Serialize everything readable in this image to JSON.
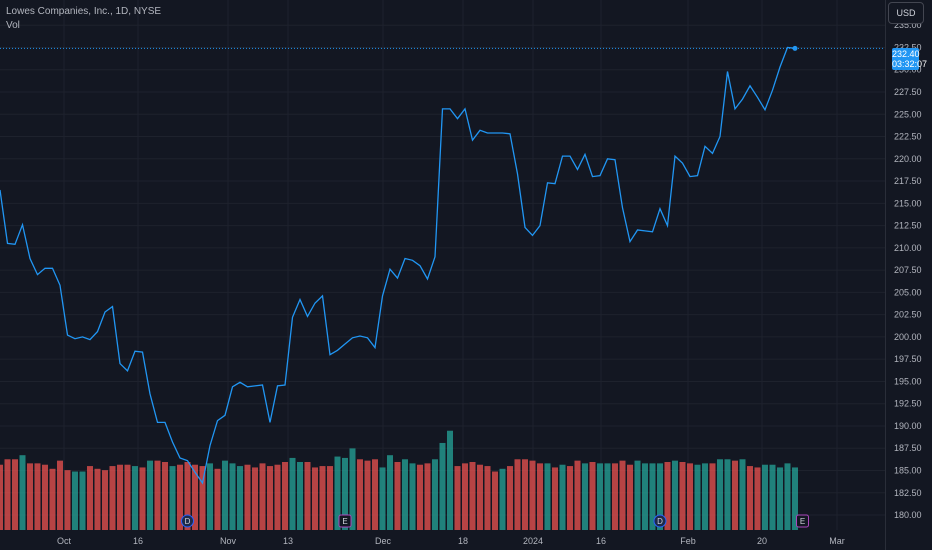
{
  "header": {
    "title": "Lowes Companies, Inc., 1D, NYSE",
    "volume_label": "Vol"
  },
  "currency_button": "USD",
  "last_price": {
    "price": "232.40",
    "countdown": "03:32:07"
  },
  "colors": {
    "line": "#2196f3",
    "up": "#26a69a",
    "down": "#ef5350",
    "bg": "#131722",
    "grid": "#1e222d"
  },
  "chart_data": {
    "type": "line",
    "series": [
      {
        "values": [
          216.5,
          210.5,
          210.4,
          212.6,
          208.8,
          207.0,
          207.7,
          207.7,
          205.8,
          200.2,
          199.8,
          200.0,
          199.7,
          200.6,
          202.8,
          203.4,
          197.0,
          196.2,
          198.4,
          198.3,
          193.6,
          190.4,
          190.4,
          188.2,
          186.4,
          186.1,
          184.8,
          183.6,
          187.8,
          190.6,
          191.2,
          194.4,
          194.9,
          194.4,
          194.5,
          194.6,
          190.4,
          194.5,
          194.6,
          202.2,
          204.2,
          202.3,
          203.8,
          204.6,
          198.0,
          198.5,
          199.2,
          199.9,
          200.1,
          199.9,
          198.8,
          204.6,
          207.6,
          206.6,
          208.8,
          208.6,
          208.0,
          206.5,
          209.0,
          225.6,
          225.6,
          224.5,
          225.6,
          222.1,
          223.2,
          222.9,
          222.9,
          222.9,
          222.8,
          218.3,
          212.3,
          211.4,
          212.5,
          217.3,
          217.2,
          220.3,
          220.3,
          218.8,
          220.5,
          218.0,
          218.1,
          220.0,
          219.9,
          214.5,
          210.7,
          212.0,
          211.9,
          211.8,
          214.4,
          212.5,
          220.3,
          219.5,
          218.0,
          218.1,
          221.4,
          220.6,
          222.5,
          229.8,
          225.6,
          226.7,
          228.2,
          226.9,
          225.5,
          227.7,
          230.3,
          232.5,
          232.4
        ],
        "volume": [
          0.48,
          0.52,
          0.52,
          0.55,
          0.49,
          0.49,
          0.48,
          0.45,
          0.51,
          0.44,
          0.43,
          0.43,
          0.47,
          0.45,
          0.44,
          0.47,
          0.48,
          0.48,
          0.47,
          0.46,
          0.51,
          0.51,
          0.5,
          0.47,
          0.48,
          0.5,
          0.48,
          0.47,
          0.49,
          0.45,
          0.51,
          0.49,
          0.47,
          0.48,
          0.46,
          0.49,
          0.47,
          0.48,
          0.5,
          0.53,
          0.5,
          0.5,
          0.46,
          0.47,
          0.47,
          0.54,
          0.53,
          0.6,
          0.52,
          0.51,
          0.52,
          0.46,
          0.55,
          0.5,
          0.52,
          0.49,
          0.48,
          0.49,
          0.52,
          0.64,
          0.73,
          0.47,
          0.49,
          0.5,
          0.48,
          0.47,
          0.43,
          0.45,
          0.47,
          0.52,
          0.52,
          0.51,
          0.49,
          0.49,
          0.46,
          0.48,
          0.47,
          0.51,
          0.49,
          0.5,
          0.49,
          0.49,
          0.49,
          0.51,
          0.48,
          0.51,
          0.49,
          0.49,
          0.49,
          0.5,
          0.51,
          0.5,
          0.49,
          0.48,
          0.49,
          0.49,
          0.52,
          0.52,
          0.51,
          0.52,
          0.47,
          0.46,
          0.48,
          0.48,
          0.46,
          0.49,
          0.46
        ],
        "volume_up": [
          false,
          false,
          false,
          true,
          false,
          false,
          false,
          false,
          false,
          false,
          true,
          true,
          false,
          false,
          false,
          false,
          false,
          false,
          true,
          false,
          true,
          false,
          false,
          true,
          false,
          false,
          false,
          false,
          true,
          false,
          true,
          true,
          true,
          false,
          false,
          false,
          false,
          false,
          false,
          true,
          true,
          false,
          false,
          false,
          false,
          true,
          true,
          true,
          false,
          false,
          false,
          true,
          true,
          false,
          true,
          true,
          false,
          false,
          true,
          true,
          true,
          false,
          false,
          false,
          false,
          false,
          false,
          true,
          false,
          false,
          false,
          false,
          false,
          true,
          false,
          true,
          false,
          false,
          true,
          false,
          true,
          true,
          false,
          false,
          false,
          true,
          true,
          true,
          true,
          false,
          true,
          false,
          false,
          true,
          true,
          false,
          true,
          true,
          false,
          true,
          false,
          false,
          true,
          true,
          true,
          true,
          true
        ]
      }
    ],
    "x_ticks": [
      "Oct",
      "16",
      "Nov",
      "13",
      "Dec",
      "18",
      "2024",
      "16",
      "Feb",
      "20",
      "Mar"
    ],
    "y_ticks": [
      "235.00",
      "232.50",
      "230.00",
      "227.50",
      "225.00",
      "222.50",
      "220.00",
      "217.50",
      "215.00",
      "212.50",
      "210.00",
      "207.50",
      "205.00",
      "202.50",
      "200.00",
      "197.50",
      "195.00",
      "192.50",
      "190.00",
      "187.50",
      "185.00",
      "182.50",
      "180.00"
    ],
    "ylim": [
      179.5,
      236.2
    ],
    "legend": "none",
    "event_markers": [
      {
        "label": "D",
        "type": "dividend",
        "index": 25
      },
      {
        "label": "E",
        "type": "earnings",
        "index": 46
      },
      {
        "label": "D",
        "type": "dividend",
        "index": 88
      },
      {
        "label": "E",
        "type": "earnings",
        "index": 107
      }
    ]
  }
}
